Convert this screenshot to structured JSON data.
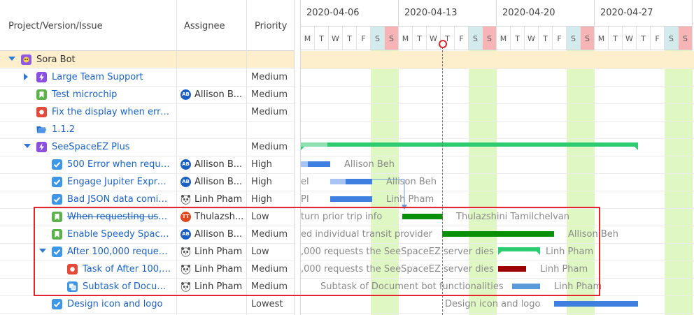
{
  "columns": {
    "project": "Project/Version/Issue",
    "assignee": "Assignee",
    "priority": "Priority"
  },
  "weeks": [
    "2020-04-06",
    "2020-04-13",
    "2020-04-20",
    "2020-04-27"
  ],
  "days": [
    "M",
    "T",
    "W",
    "T",
    "F",
    "S",
    "S",
    "M",
    "T",
    "W",
    "T",
    "F",
    "S",
    "S",
    "M",
    "T",
    "W",
    "T",
    "F",
    "S",
    "S",
    "M",
    "T",
    "W",
    "T",
    "F",
    "S",
    "S"
  ],
  "rows": [
    {
      "name": "Sora Bot",
      "assignee": "",
      "priority": "",
      "type": "project",
      "indent": 0,
      "toggle": "down",
      "summary": true
    },
    {
      "name": "Large Team Support",
      "assignee": "",
      "priority": "Medium",
      "type": "epic",
      "indent": 1,
      "toggle": "right"
    },
    {
      "name": "Test microchip",
      "assignee": "Allison B...",
      "avatar": "AB",
      "priority": "Medium",
      "type": "story",
      "indent": 1
    },
    {
      "name": "Fix the display when error ...",
      "assignee": "",
      "priority": "Medium",
      "type": "bug",
      "indent": 1
    },
    {
      "name": "1.1.2",
      "assignee": "",
      "priority": "",
      "type": "version",
      "indent": 1
    },
    {
      "name": "SeeSpaceEZ Plus",
      "assignee": "",
      "priority": "Medium",
      "type": "epic",
      "indent": 1,
      "toggle": "down"
    },
    {
      "name": "500 Error when reque...",
      "assignee": "Allison B...",
      "avatar": "AB",
      "priority": "High",
      "type": "task",
      "indent": 2
    },
    {
      "name": "Engage Jupiter Express...",
      "assignee": "Allison B...",
      "avatar": "AB",
      "priority": "High",
      "type": "task",
      "indent": 2
    },
    {
      "name": "Bad JSON data coming...",
      "assignee": "Linh Pham",
      "avatar": "panda",
      "priority": "High",
      "type": "task",
      "indent": 2
    },
    {
      "name": "When requesting user...",
      "assignee": "Thulazsh...",
      "avatar": "TT",
      "priority": "Low",
      "type": "story",
      "indent": 2,
      "strike": true
    },
    {
      "name": "Enable Speedy SpaceC...",
      "assignee": "Allison B...",
      "avatar": "AB",
      "priority": "Medium",
      "type": "story",
      "indent": 2
    },
    {
      "name": "After 100,000 requests...",
      "assignee": "Linh Pham",
      "avatar": "panda",
      "priority": "Low",
      "type": "task",
      "indent": 2,
      "toggle": "down"
    },
    {
      "name": "Task of After 100,0...",
      "assignee": "Linh Pham",
      "avatar": "panda",
      "priority": "Medium",
      "type": "bug",
      "indent": 3
    },
    {
      "name": "Subtask of Docum...",
      "assignee": "Linh Pham",
      "avatar": "panda",
      "priority": "Medium",
      "type": "subtask",
      "indent": 3
    },
    {
      "name": "Design icon and logo",
      "assignee": "",
      "priority": "Lowest",
      "type": "task",
      "indent": 2
    }
  ],
  "bar_labels": {
    "r6": "Allison Beh",
    "r7a": "el",
    "r7b": "Allison Beh",
    "r8a": "PI",
    "r8b": "Linh Pham",
    "r9a": "turn prior trip info",
    "r9b": "Thulazshini Tamilchelvan",
    "r10a": "ed individual transit provider",
    "r10b": "Allison Beh",
    "r11a": ",000 requests the SeeSpaceEZ server dies",
    "r11b": "Linh Pham",
    "r12a": ",000 requests the SeeSpaceEZ server dies",
    "r12b": "Linh Pham",
    "r13a": "Subtask of Document bot functionalities",
    "r13b": "Linh Pham",
    "r14a": "Design icon and logo"
  },
  "colors": {
    "link": "#1a63c9",
    "weekend_band": "#dff8c3",
    "sat_header": "#d4ebee",
    "sun_header": "#f7b4b6",
    "summary_row": "#fdeecc",
    "highlight_box": "#e5242b",
    "today_line": "#777777",
    "bar_green": "#2ecc71",
    "bar_darkgreen": "#0a8f08",
    "bar_blue": "#3e7fe0",
    "bar_darkred": "#9e0000"
  }
}
